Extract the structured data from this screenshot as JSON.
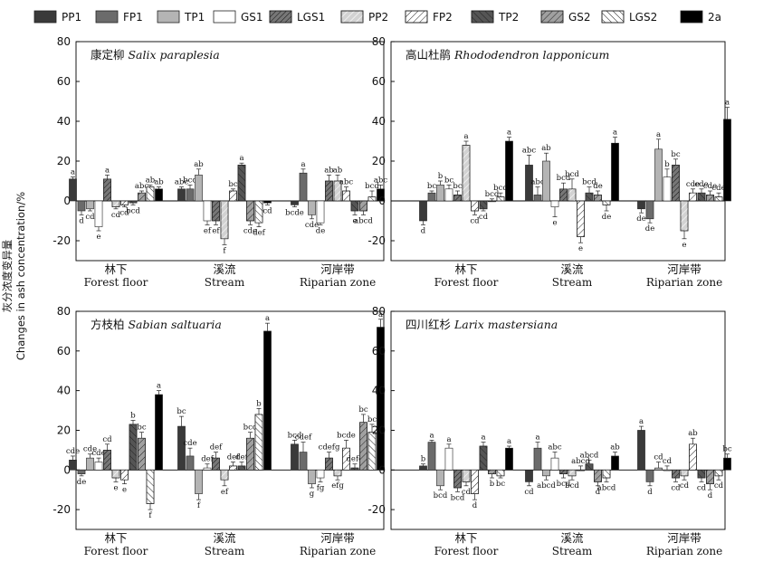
{
  "figure": {
    "ylabel_zh": "灰分浓度变异量",
    "ylabel_en": "Changes in ash concentration/%"
  },
  "legend": [
    {
      "label": "PP1",
      "fill": "#3a3a3a",
      "pattern": "solid"
    },
    {
      "label": "FP1",
      "fill": "#6b6b6b",
      "pattern": "solid"
    },
    {
      "label": "TP1",
      "fill": "#b4b4b4",
      "pattern": "solid"
    },
    {
      "label": "GS1",
      "fill": "#ffffff",
      "pattern": "solid"
    },
    {
      "label": "LGS1",
      "fill": "#777777",
      "pattern": "dark-diag"
    },
    {
      "label": "PP2",
      "fill": "#d2d2d2",
      "pattern": "light-diag"
    },
    {
      "label": "FP2",
      "fill": "#ffffff",
      "pattern": "diag"
    },
    {
      "label": "TP2",
      "fill": "#555555",
      "pattern": "back-diag"
    },
    {
      "label": "GS2",
      "fill": "#a0a0a0",
      "pattern": "diag"
    },
    {
      "label": "LGS2",
      "fill": "#ffffff",
      "pattern": "back-diag"
    },
    {
      "label": "2a",
      "fill": "#000000",
      "pattern": "solid"
    }
  ],
  "chart_data": [
    {
      "type": "bar",
      "title": "康定柳 Salix paraplesia",
      "title_zh": "康定柳",
      "title_latin": "Salix paraplesia",
      "ylim": [
        -30,
        80
      ],
      "yticks": [
        -20,
        0,
        20,
        40,
        60,
        80
      ],
      "groups": [
        {
          "zh": "林下",
          "en": "Forest floor",
          "values": [
            11,
            -5,
            -4,
            -13,
            11,
            -3,
            -2,
            -1,
            4,
            7,
            6
          ],
          "err": [
            1,
            2,
            1,
            2,
            2,
            1,
            1,
            1,
            1,
            1,
            1
          ],
          "letters": [
            "a",
            "d",
            "cd",
            "e",
            "a",
            "cd",
            "cd",
            "bcd",
            "abc",
            "ab",
            "ab"
          ]
        },
        {
          "zh": "溪流",
          "en": "Stream",
          "values": [
            6,
            6,
            13,
            -10,
            -10,
            -19,
            5,
            18,
            -10,
            -11,
            -1
          ],
          "err": [
            1,
            2,
            3,
            2,
            2,
            3,
            1,
            1,
            2,
            2,
            1
          ],
          "letters": [
            "abc",
            "bcd",
            "ab",
            "ef",
            "ef",
            "f",
            "bc",
            "a",
            "cde",
            "def",
            "cd"
          ]
        },
        {
          "zh": "河岸带",
          "en": "Riparian zone",
          "values": [
            -2,
            14,
            -7,
            -11,
            10,
            10,
            5,
            -5,
            -5,
            2,
            6
          ],
          "err": [
            1,
            2,
            2,
            1,
            3,
            3,
            2,
            2,
            2,
            3,
            2
          ],
          "letters": [
            "bcde",
            "a",
            "cde",
            "de",
            "ab",
            "ab",
            "abc",
            "e",
            "abcd",
            "bcd",
            "abc"
          ]
        }
      ]
    },
    {
      "type": "bar",
      "title": "高山杜鹃 Rhododendron lapponicum",
      "title_zh": "高山杜鹃",
      "title_latin": "Rhododendron lapponicum",
      "ylim": [
        -30,
        80
      ],
      "yticks": [
        -20,
        0,
        20,
        40,
        60,
        80
      ],
      "groups": [
        {
          "zh": "林下",
          "en": "Forest floor",
          "values": [
            -10,
            4,
            8,
            6,
            3,
            28,
            -5,
            -4,
            0,
            2,
            30
          ],
          "err": [
            2,
            1,
            2,
            2,
            2,
            2,
            2,
            1,
            1,
            2,
            2
          ],
          "letters": [
            "d",
            "bc",
            "b",
            "bc",
            "bc",
            "a",
            "cd",
            "cd",
            "bcd",
            "bcd",
            "a"
          ]
        },
        {
          "zh": "溪流",
          "en": "Stream",
          "values": [
            18,
            3,
            20,
            -3,
            6,
            6,
            -18,
            4,
            3,
            -2,
            29
          ],
          "err": [
            5,
            4,
            4,
            5,
            3,
            5,
            3,
            3,
            2,
            3,
            3
          ],
          "letters": [
            "abc",
            "abc",
            "ab",
            "e",
            "bcd",
            "bcd",
            "e",
            "bcd",
            "de",
            "de",
            "a"
          ]
        },
        {
          "zh": "河岸带",
          "en": "Riparian zone",
          "values": [
            -4,
            -9,
            26,
            12,
            18,
            -15,
            4,
            4,
            3,
            2,
            41
          ],
          "err": [
            2,
            2,
            5,
            4,
            3,
            4,
            2,
            2,
            2,
            2,
            6
          ],
          "letters": [
            "de",
            "de",
            "a",
            "b",
            "bc",
            "e",
            "cde",
            "cde",
            "cde",
            "cde",
            "a"
          ]
        }
      ]
    },
    {
      "type": "bar",
      "title": "方枝柏 Sabian saltuaria",
      "title_zh": "方枝柏",
      "title_latin": "Sabian saltuaria",
      "ylim": [
        -30,
        80
      ],
      "yticks": [
        -20,
        0,
        20,
        40,
        60,
        80
      ],
      "groups": [
        {
          "zh": "林下",
          "en": "Forest floor",
          "values": [
            5,
            -2,
            6,
            4,
            10,
            -4,
            -5,
            23,
            16,
            -17,
            38
          ],
          "err": [
            2,
            1,
            2,
            2,
            3,
            2,
            2,
            2,
            3,
            3,
            2
          ],
          "letters": [
            "cde",
            "de",
            "cde",
            "cde",
            "cd",
            "e",
            "e",
            "b",
            "bc",
            "f",
            "a"
          ]
        },
        {
          "zh": "溪流",
          "en": "Stream",
          "values": [
            22,
            7,
            -12,
            1,
            6,
            -5,
            2,
            2,
            16,
            28,
            70
          ],
          "err": [
            5,
            4,
            3,
            2,
            3,
            3,
            2,
            2,
            3,
            3,
            4
          ],
          "letters": [
            "bc",
            "cde",
            "f",
            "def",
            "def",
            "ef",
            "def",
            "def",
            "bcd",
            "b",
            "a"
          ]
        },
        {
          "zh": "河岸带",
          "en": "Riparian zone",
          "values": [
            13,
            9,
            -7,
            -4,
            6,
            -3,
            11,
            1,
            24,
            19,
            72
          ],
          "err": [
            2,
            5,
            2,
            2,
            3,
            2,
            4,
            2,
            4,
            4,
            4
          ],
          "letters": [
            "bcd",
            "cdef",
            "g",
            "fg",
            "cdefg",
            "efg",
            "bcde",
            "defg",
            "bc",
            "bc",
            "a"
          ]
        }
      ]
    },
    {
      "type": "bar",
      "title": "四川红杉 Larix mastersiana",
      "title_zh": "四川红杉",
      "title_latin": "Larix mastersiana",
      "ylim": [
        -30,
        80
      ],
      "yticks": [
        -20,
        0,
        20,
        40,
        60,
        80
      ],
      "groups": [
        {
          "zh": "林下",
          "en": "Forest floor",
          "values": [
            2,
            14,
            -8,
            11,
            -9,
            -6,
            -12,
            12,
            -2,
            -3,
            11
          ],
          "err": [
            1,
            1,
            2,
            2,
            2,
            2,
            3,
            2,
            2,
            1,
            1
          ],
          "letters": [
            "b",
            "a",
            "bcd",
            "a",
            "bcd",
            "cd",
            "d",
            "a",
            "b",
            "bc",
            "a"
          ]
        },
        {
          "zh": "溪流",
          "en": "Stream",
          "values": [
            -6,
            11,
            -3,
            6,
            -2,
            -3,
            0,
            3,
            -6,
            -4,
            7
          ],
          "err": [
            2,
            3,
            2,
            3,
            2,
            2,
            2,
            2,
            2,
            2,
            2
          ],
          "letters": [
            "cd",
            "a",
            "abcd",
            "abc",
            "bcd",
            "bcd",
            "abcd",
            "abcd",
            "d",
            "abcd",
            "ab"
          ]
        },
        {
          "zh": "河岸带",
          "en": "Riparian zone",
          "values": [
            20,
            -6,
            1,
            0,
            -4,
            -3,
            13,
            -4,
            -7,
            -3,
            6
          ],
          "err": [
            2,
            2,
            3,
            2,
            2,
            2,
            3,
            2,
            3,
            2,
            2
          ],
          "letters": [
            "a",
            "d",
            "cd",
            "cd",
            "cd",
            "cd",
            "ab",
            "cd",
            "d",
            "cd",
            "bc"
          ]
        }
      ]
    }
  ]
}
